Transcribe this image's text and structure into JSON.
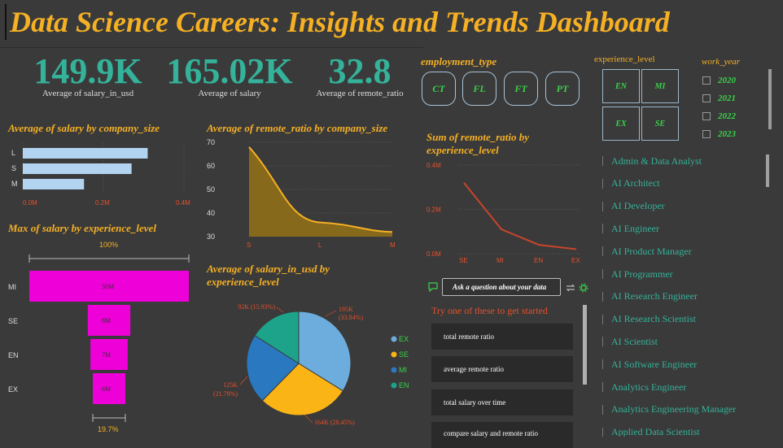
{
  "title": "Data Science Careers: Insights and Trends Dashboard",
  "kpis": [
    {
      "value": "149.9K",
      "label": "Average of salary_in_usd"
    },
    {
      "value": "165.02K",
      "label": "Average of salary"
    },
    {
      "value": "32.8",
      "label": "Average of remote_ratio"
    }
  ],
  "employment_type": {
    "label": "employment_type",
    "options": [
      "CT",
      "FL",
      "FT",
      "PT"
    ]
  },
  "experience_level": {
    "label": "experience_level",
    "options": [
      "EN",
      "MI",
      "EX",
      "SE"
    ]
  },
  "work_year": {
    "label": "work_year",
    "options": [
      "2020",
      "2021",
      "2022",
      "2023"
    ]
  },
  "job_titles": [
    "Admin & Data Analyst",
    "AI Architect",
    "AI Developer",
    "AI Engineer",
    "AI Product Manager",
    "AI Programmer",
    "AI Research Engineer",
    "AI Research Scientist",
    "AI Scientist",
    "AI Software Engineer",
    "Analytics Engineer",
    "Analytics Engineering Manager",
    "Applied Data Scientist"
  ],
  "qa": {
    "placeholder": "Ask a question about your data",
    "prompt": "Try one of these to get started",
    "suggestions": [
      "total remote ratio",
      "average remote ratio",
      "total salary over time",
      "compare salary and remote ratio"
    ]
  },
  "chart_data": [
    {
      "type": "bar",
      "title": "Average of salary by company_size",
      "categories": [
        "L",
        "S",
        "M"
      ],
      "values": [
        310000,
        270000,
        152000
      ],
      "xlim": [
        0,
        400000
      ],
      "xticks": [
        "0.0M",
        "0.2M",
        "0.4M"
      ],
      "color": "#b3d4f0",
      "grid": true
    },
    {
      "type": "area",
      "title": "Average of remote_ratio by company_size",
      "categories": [
        "S",
        "L",
        "M"
      ],
      "values": [
        68,
        36,
        32
      ],
      "ylim": [
        30,
        70
      ],
      "yticks": [
        "70",
        "60",
        "50",
        "40",
        "30"
      ],
      "color": "#f5b024"
    },
    {
      "type": "line",
      "title": "Sum of remote_ratio by experience_level",
      "categories": [
        "SE",
        "MI",
        "EN",
        "EX"
      ],
      "values": [
        320000,
        110000,
        40000,
        20000
      ],
      "ylim": [
        0,
        400000
      ],
      "yticks": [
        "0.4M",
        "0.2M",
        "0.0M"
      ],
      "color": "#c7452a"
    },
    {
      "type": "bar",
      "title": "Max of salary by experience_level",
      "categories": [
        "MI",
        "SE",
        "EN",
        "EX"
      ],
      "values": [
        30,
        8,
        7,
        6
      ],
      "value_labels": [
        "30M",
        "8M",
        "7M",
        "6M"
      ],
      "top_label": "100%",
      "bottom_label": "19.7%",
      "color": "#ee00d8"
    },
    {
      "type": "pie",
      "title": "Average of salary_in_usd by experience_level",
      "slices": [
        {
          "name": "EX",
          "value": 195,
          "label": "195K",
          "pct": "(33.84%)",
          "color": "#6cadde"
        },
        {
          "name": "SE",
          "value": 164,
          "label": "164K (28.45%)",
          "pct": "",
          "color": "#fbb416"
        },
        {
          "name": "MI",
          "value": 125,
          "label": "125K",
          "pct": "(21.79%)",
          "color": "#2a78c0"
        },
        {
          "name": "EN",
          "value": 92,
          "label": "92K (15.93%)",
          "pct": "",
          "color": "#1ca38a"
        }
      ],
      "legend": "right"
    }
  ]
}
